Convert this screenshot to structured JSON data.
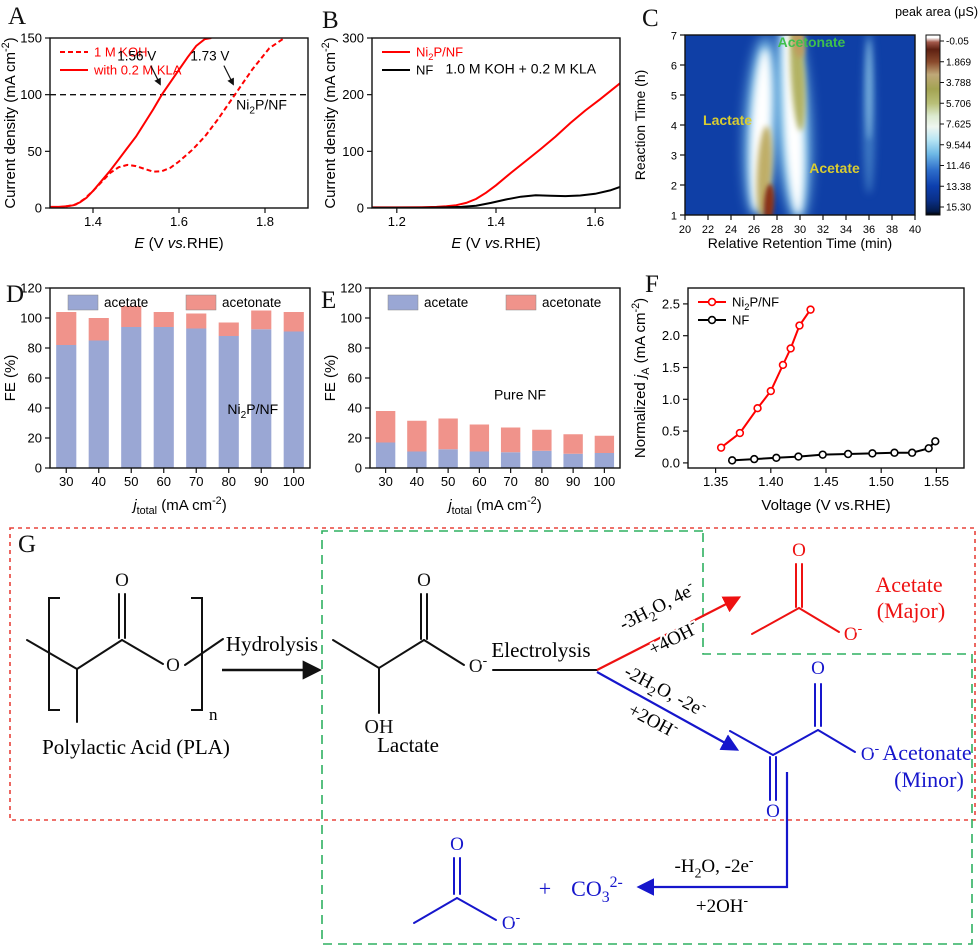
{
  "figure": {
    "panel_letters": [
      "A",
      "B",
      "C",
      "D",
      "E",
      "F",
      "G"
    ]
  },
  "chart_data": [
    {
      "id": "A",
      "panel": "A",
      "type": "line",
      "xlabel": "*E* (V *vs.*RHE)",
      "ylabel": "Current density (mA cm^{-2})",
      "xlim": [
        1.3,
        1.9
      ],
      "ylim": [
        0,
        150
      ],
      "xticks": [
        1.4,
        1.6,
        1.8
      ],
      "xtick_labels": [
        "1.4",
        "1.6",
        "1.8"
      ],
      "yticks": [
        0,
        50,
        100,
        150
      ],
      "ytick_labels": [
        "0",
        "50",
        "100",
        "150"
      ],
      "hline": 100,
      "legend_position": "top-left",
      "inset": {
        "text": "Ni_{2}P/NF",
        "fx": 0.82,
        "fy": 0.42
      },
      "annotations": [
        {
          "text": "1.56 V",
          "x": 1.56,
          "y": 100
        },
        {
          "text": "1.73 V",
          "x": 1.73,
          "y": 100
        }
      ],
      "series": [
        {
          "name": "1 M KOH",
          "color": "#ff0000",
          "text_color": "#ff0000",
          "dash": "5 3",
          "x": [
            1.3,
            1.33,
            1.36,
            1.38,
            1.4,
            1.42,
            1.44,
            1.46,
            1.48,
            1.5,
            1.52,
            1.54,
            1.56,
            1.58,
            1.6,
            1.63,
            1.66,
            1.69,
            1.73,
            1.77,
            1.81,
            1.845
          ],
          "y": [
            0.5,
            1,
            3,
            8,
            15,
            23,
            31,
            36,
            38,
            37,
            34.5,
            32,
            32.5,
            35.5,
            41,
            51,
            63,
            78,
            100,
            122,
            141,
            150
          ]
        },
        {
          "name": "with 0.2 M KLA",
          "color": "#ff0000",
          "text_color": "#ff0000",
          "x": [
            1.3,
            1.32,
            1.34,
            1.355,
            1.37,
            1.385,
            1.4,
            1.42,
            1.44,
            1.46,
            1.48,
            1.5,
            1.52,
            1.54,
            1.56,
            1.58,
            1.6,
            1.62,
            1.64,
            1.66,
            1.675
          ],
          "y": [
            1,
            1,
            1.5,
            2.5,
            5,
            9,
            15,
            24,
            33,
            43,
            53,
            63,
            75,
            87,
            100,
            111,
            122,
            133,
            143,
            149,
            150
          ]
        }
      ]
    },
    {
      "id": "B",
      "panel": "B",
      "type": "line",
      "xlabel": "*E* (V *vs.*RHE)",
      "ylabel": "Current density (mA cm^{-2})",
      "xlim": [
        1.15,
        1.65
      ],
      "ylim": [
        0,
        300
      ],
      "xticks": [
        1.2,
        1.4,
        1.6
      ],
      "xtick_labels": [
        "1.2",
        "1.4",
        "1.6"
      ],
      "yticks": [
        0,
        100,
        200,
        300
      ],
      "ytick_labels": [
        "0",
        "100",
        "200",
        "300"
      ],
      "legend_position": "top-left",
      "inset": {
        "text": "1.0 M KOH + 0.2 M KLA",
        "fx": 0.6,
        "fy": 0.21
      },
      "series": [
        {
          "name": "Ni_{2}P/NF",
          "color": "#ff0000",
          "text_color": "#ff0000",
          "x": [
            1.15,
            1.2,
            1.25,
            1.28,
            1.3,
            1.32,
            1.34,
            1.36,
            1.38,
            1.4,
            1.43,
            1.46,
            1.49,
            1.52,
            1.55,
            1.58,
            1.61,
            1.65
          ],
          "y": [
            1,
            1,
            1.5,
            2,
            3,
            5,
            9,
            16,
            27,
            40,
            62,
            83,
            104,
            126,
            150,
            172,
            192,
            220
          ]
        },
        {
          "name": "NF",
          "color": "#000000",
          "text_color": "#000000",
          "x": [
            1.15,
            1.25,
            1.3,
            1.33,
            1.36,
            1.39,
            1.42,
            1.45,
            1.48,
            1.51,
            1.54,
            1.57,
            1.6,
            1.63,
            1.65
          ],
          "y": [
            0.5,
            0.5,
            1,
            2,
            4,
            9,
            15,
            20,
            22.5,
            21.5,
            21,
            22,
            25,
            31,
            37
          ]
        }
      ]
    },
    {
      "id": "C",
      "panel": "C",
      "type": "heatmap",
      "xlabel": "Relative Retention Time (min)",
      "ylabel": "Reaction Time (h)",
      "xlim": [
        20,
        40
      ],
      "ylim": [
        1,
        7
      ],
      "xticks": [
        20,
        22,
        24,
        26,
        28,
        30,
        32,
        34,
        36,
        38,
        40
      ],
      "yticks": [
        1,
        2,
        3,
        4,
        5,
        6,
        7
      ],
      "background": "#0f3fa6",
      "band_labels": [
        {
          "text": "Lactate",
          "color": "#d8cc32",
          "x": 23.7,
          "y": 4.0
        },
        {
          "text": "Acetate",
          "color": "#d8cc32",
          "x": 33.0,
          "y": 2.4
        },
        {
          "text": "Acetonate",
          "color": "#3fbf4d",
          "x": 31.0,
          "y": 6.6
        }
      ],
      "bands": [
        {
          "name": "Lactate",
          "retention_min": 27,
          "behavior": "strongest at 1 h (dark red core ~15 uS), fades toward 7 h"
        },
        {
          "name": "Acetate",
          "retention_min": 29.5,
          "behavior": "grows from 1 h to 7 h (olive core ~11 uS at top)"
        },
        {
          "name": "Acetonate",
          "retention_min": 36,
          "behavior": "weak faint band ~2 uS"
        }
      ],
      "colorbar": {
        "title": "peak area (μS)",
        "tick_labels": [
          "15.30",
          "13.38",
          "11.46",
          "9.544",
          "7.625",
          "5.706",
          "3.788",
          "1.869",
          "-0.05"
        ]
      }
    },
    {
      "id": "D",
      "panel": "D",
      "type": "bar-stacked",
      "xlabel": "*j*_{total} (mA cm^{-2})",
      "ylabel": "FE (%)",
      "categories": [
        "30",
        "40",
        "50",
        "60",
        "70",
        "80",
        "90",
        "100"
      ],
      "ylim": [
        0,
        120
      ],
      "yticks": [
        0,
        20,
        40,
        60,
        80,
        100,
        120
      ],
      "ytick_labels": [
        "0",
        "20",
        "40",
        "60",
        "80",
        "100",
        "120"
      ],
      "inset": {
        "text": "Ni_{2}P/NF",
        "fx": 0.78,
        "fy": 0.7
      },
      "series": [
        {
          "name": "acetate",
          "color": "#9aa7d4",
          "values": [
            82,
            85,
            94,
            94,
            93,
            88,
            92.5,
            91
          ]
        },
        {
          "name": "acetonate",
          "color": "#f0938b",
          "values": [
            22,
            15,
            14,
            10,
            10,
            9,
            12.5,
            13
          ]
        }
      ]
    },
    {
      "id": "E",
      "panel": "E",
      "type": "bar-stacked",
      "xlabel": "*j*_{total} (mA cm^{-2})",
      "ylabel": "FE (%)",
      "categories": [
        "30",
        "40",
        "50",
        "60",
        "70",
        "80",
        "90",
        "100"
      ],
      "ylim": [
        0,
        120
      ],
      "yticks": [
        0,
        20,
        40,
        60,
        80,
        100,
        120
      ],
      "ytick_labels": [
        "0",
        "20",
        "40",
        "60",
        "80",
        "100",
        "120"
      ],
      "inset": {
        "text": "Pure NF",
        "fx": 0.6,
        "fy": 0.62
      },
      "series": [
        {
          "name": "acetate",
          "color": "#9aa7d4",
          "values": [
            17,
            11,
            12.5,
            11,
            10.5,
            11.5,
            9.5,
            10
          ]
        },
        {
          "name": "acetonate",
          "color": "#f0938b",
          "values": [
            21,
            20.5,
            20.5,
            18,
            16.5,
            14,
            13,
            11.5
          ]
        }
      ]
    },
    {
      "id": "F",
      "panel": "F",
      "type": "scatter-line",
      "xlabel": "Voltage (V vs.RHE)",
      "ylabel": "Normalized *j*_{A} (mA cm^{-2})",
      "xlim": [
        1.325,
        1.575
      ],
      "ylim": [
        -0.08,
        2.75
      ],
      "xticks": [
        1.35,
        1.4,
        1.45,
        1.5,
        1.55
      ],
      "xtick_labels": [
        "1.35",
        "1.40",
        "1.45",
        "1.50",
        "1.55"
      ],
      "yticks": [
        0,
        0.5,
        1,
        1.5,
        2,
        2.5
      ],
      "ytick_labels": [
        "0.0",
        "0.5",
        "1.0",
        "1.5",
        "2.0",
        "2.5"
      ],
      "legend_position": "top-left",
      "series": [
        {
          "name": "Ni_{2}P/NF",
          "color": "#ff0000",
          "text_color": "#000000",
          "marker": "circle",
          "x": [
            1.355,
            1.372,
            1.388,
            1.4,
            1.411,
            1.418,
            1.426,
            1.436
          ],
          "y": [
            0.24,
            0.47,
            0.86,
            1.13,
            1.54,
            1.8,
            2.16,
            2.41
          ]
        },
        {
          "name": "NF",
          "color": "#000000",
          "text_color": "#000000",
          "marker": "circle",
          "x": [
            1.365,
            1.385,
            1.405,
            1.425,
            1.447,
            1.47,
            1.492,
            1.512,
            1.528,
            1.543,
            1.549
          ],
          "y": [
            0.04,
            0.06,
            0.08,
            0.1,
            0.13,
            0.14,
            0.15,
            0.16,
            0.16,
            0.23,
            0.34
          ]
        }
      ]
    }
  ],
  "diagram": {
    "panel": "G",
    "outer_box_color": "#e8433b",
    "inner_box_color": "#2fb060",
    "black": "#111111",
    "red": "#ee1111",
    "blue": "#1616cc",
    "pla_name": "Polylactic Acid (PLA)",
    "repeat_sub": "n",
    "hydrolysis": "Hydrolysis",
    "electrolysis": "Electrolysis",
    "lactate_name": "Lactate",
    "atom_o": "O",
    "atom_oh": "OH",
    "atom_om": "O^{-}",
    "red_route": {
      "l1": "-3H_{2}O, 4e^{-}",
      "l2": "+4OH^{-}",
      "product": "Acetate",
      "grade": "(Major)"
    },
    "blue_route": {
      "l1": "-2H_{2}O, -2e^{-}",
      "l2": "+2OH^{-}",
      "product": "Acetonate",
      "grade": "(Minor)"
    },
    "bottom_route": {
      "l1": "-H_{2}O, -2e^{-}",
      "l2": "+2OH^{-}",
      "plus": "+",
      "carbonate": "CO_{3}^{2-}"
    }
  }
}
